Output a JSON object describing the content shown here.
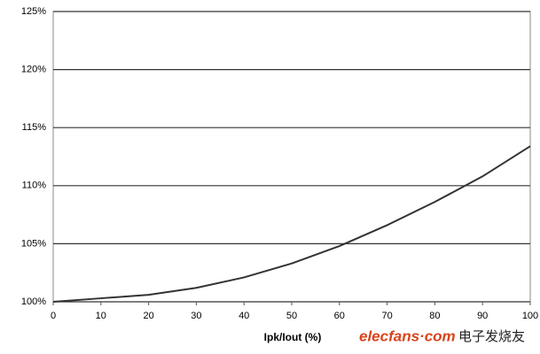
{
  "chart_data": {
    "type": "line",
    "xlabel": "Ipk/Iout (%)",
    "x": [
      0,
      10,
      20,
      30,
      40,
      50,
      60,
      70,
      80,
      90,
      100
    ],
    "series": [
      {
        "color": "#333333",
        "values": [
          100,
          100.3,
          100.6,
          101.2,
          102.1,
          103.3,
          104.8,
          106.6,
          108.6,
          110.8,
          113.4
        ]
      }
    ],
    "xlim": [
      0,
      100
    ],
    "xticks": [
      0,
      10,
      20,
      30,
      40,
      50,
      60,
      70,
      80,
      90,
      100
    ],
    "ylim": [
      100,
      125
    ],
    "yticks": [
      {
        "value": 100,
        "label": "100%"
      },
      {
        "value": 105,
        "label": "105%"
      },
      {
        "value": 110,
        "label": "110%"
      },
      {
        "value": 115,
        "label": "115%"
      },
      {
        "value": 120,
        "label": "120%"
      },
      {
        "value": 125,
        "label": "125%"
      }
    ],
    "grid": true
  },
  "watermark": [
    "elecfans·com",
    "电子发烧友"
  ]
}
